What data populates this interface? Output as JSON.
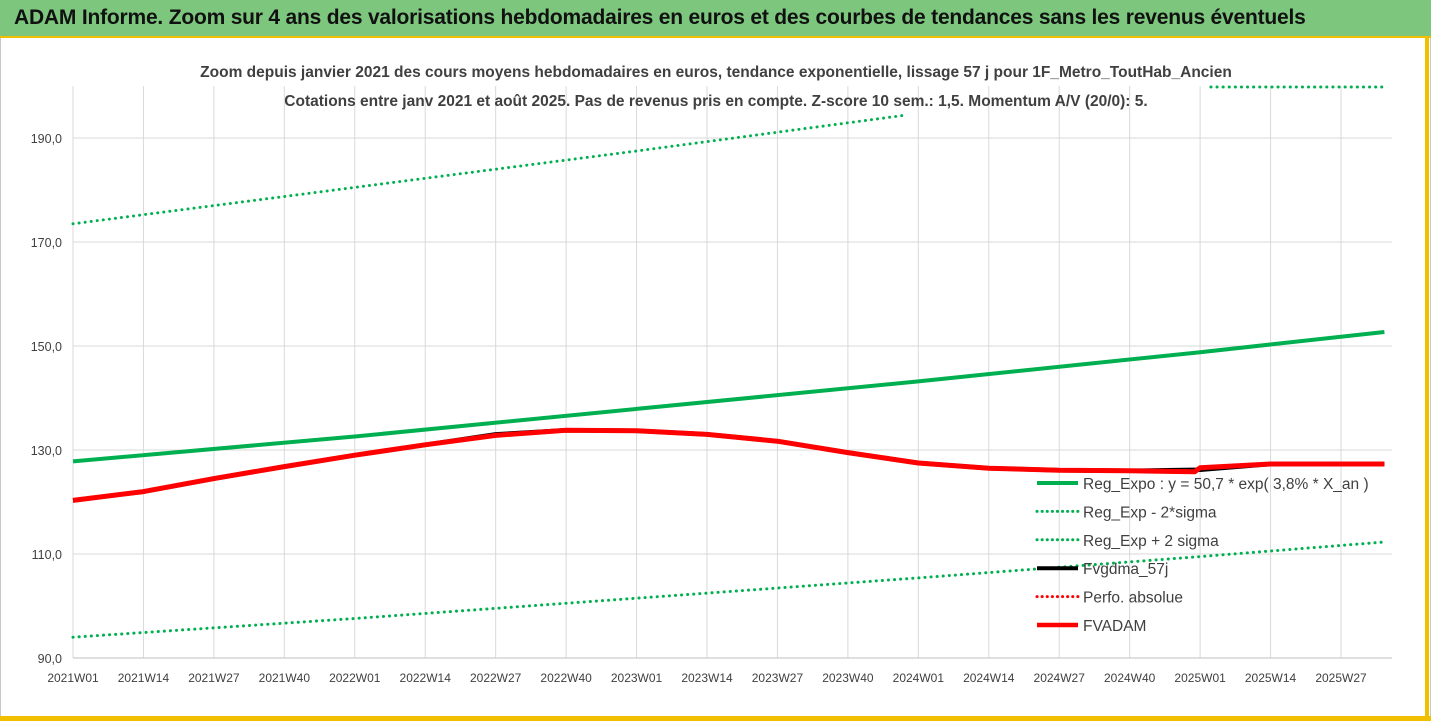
{
  "header": {
    "title": "ADAM Informe. Zoom sur 4 ans des valorisations hebdomadaires en euros et des courbes de tendances sans les revenus éventuels"
  },
  "colors": {
    "header_bg": "#7dc67d",
    "accent": "#f0c000",
    "reg_expo": "#00b050",
    "fvgdma": "#000000",
    "fvadam": "#ff0000",
    "perfo": "#ff0000",
    "grid": "#d9d9d9"
  },
  "chart_data": {
    "type": "line",
    "title": "Zoom depuis janvier 2021 des cours moyens hebdomadaires en euros, tendance exponentielle, lissage 57 j pour 1F_Metro_ToutHab_Ancien",
    "subtitle": "Cotations entre janv 2021 et août 2025.  Pas de revenus pris en compte. Z-score 10 sem.: 1,5. Momentum A/V (20/0): 5.",
    "x_tick_labels": [
      "2021W01",
      "2021W14",
      "2021W27",
      "2021W40",
      "2022W01",
      "2022W14",
      "2022W27",
      "2022W40",
      "2023W01",
      "2023W14",
      "2023W27",
      "2023W40",
      "2024W01",
      "2024W14",
      "2024W27",
      "2024W40",
      "2025W01",
      "2025W14",
      "2025W27"
    ],
    "xlim": [
      "2021W01",
      "2025W35"
    ],
    "ylim": [
      90,
      200
    ],
    "y_ticks": [
      90,
      110,
      130,
      150,
      170,
      190
    ],
    "y_tick_labels": [
      "90,0",
      "110,0",
      "130,0",
      "150,0",
      "170,0",
      "190,0"
    ],
    "grid": true,
    "legend_position": "bottom-right",
    "series": [
      {
        "name": "Reg_Expo : y = 50,7 * exp( 3,8% *  X_an )",
        "style": "solid",
        "color": "#00b050",
        "x": [
          "2021W01",
          "2022W01",
          "2023W01",
          "2024W01",
          "2025W01",
          "2025W35"
        ],
        "values": [
          127.8,
          132.6,
          137.9,
          143.2,
          148.8,
          152.7
        ]
      },
      {
        "name": "Reg_Exp - 2*sigma",
        "style": "dotted",
        "color": "#00b050",
        "x": [
          "2021W01",
          "2022W01",
          "2023W01",
          "2024W01",
          "2025W01",
          "2025W35"
        ],
        "values": [
          94.0,
          97.6,
          101.5,
          105.4,
          109.5,
          112.3
        ]
      },
      {
        "name": "Reg_Exp + 2 sigma",
        "style": "dotted",
        "color": "#00b050",
        "x": [
          "2021W01",
          "2022W01",
          "2023W01",
          "2023W50"
        ],
        "values": [
          173.5,
          180.5,
          187.5,
          194.3
        ]
      },
      {
        "name": "Reg_Exp + 2 sigma",
        "style": "dotted",
        "color": "#00b050",
        "legend": false,
        "x": [
          "2025W03",
          "2025W35"
        ],
        "values": [
          199.8,
          199.8
        ]
      },
      {
        "name": "Fvgdma_57j",
        "style": "solid",
        "color": "#000000",
        "x": [
          "2021W01",
          "2021W14",
          "2021W27",
          "2021W40",
          "2022W01",
          "2022W14",
          "2022W27",
          "2022W40",
          "2023W01",
          "2023W14",
          "2023W27",
          "2023W40",
          "2024W01",
          "2024W14",
          "2024W27",
          "2024W40",
          "2025W01",
          "2025W14",
          "2025W27",
          "2025W35"
        ],
        "values": [
          120.3,
          122.0,
          124.5,
          126.8,
          129.0,
          131.0,
          133.0,
          133.8,
          133.7,
          133.0,
          131.7,
          129.5,
          127.5,
          126.5,
          126.1,
          126.0,
          126.2,
          127.3,
          127.3,
          127.3
        ]
      },
      {
        "name": "Perfo. absolue",
        "style": "dotted",
        "color": "#ff0000",
        "x": [],
        "values": []
      },
      {
        "name": "FVADAM",
        "style": "solid",
        "color": "#ff0000",
        "x": [
          "2021W01",
          "2021W14",
          "2021W27",
          "2021W40",
          "2022W01",
          "2022W14",
          "2022W27",
          "2022W40",
          "2023W01",
          "2023W14",
          "2023W27",
          "2023W40",
          "2024W01",
          "2024W14",
          "2024W27",
          "2024W40",
          "2024W52",
          "2025W01",
          "2025W14",
          "2025W27",
          "2025W35"
        ],
        "values": [
          120.3,
          122.0,
          124.5,
          126.8,
          129.0,
          131.0,
          132.8,
          133.8,
          133.7,
          133.0,
          131.7,
          129.5,
          127.5,
          126.5,
          126.1,
          126.0,
          125.8,
          126.6,
          127.3,
          127.3,
          127.3
        ]
      }
    ]
  }
}
